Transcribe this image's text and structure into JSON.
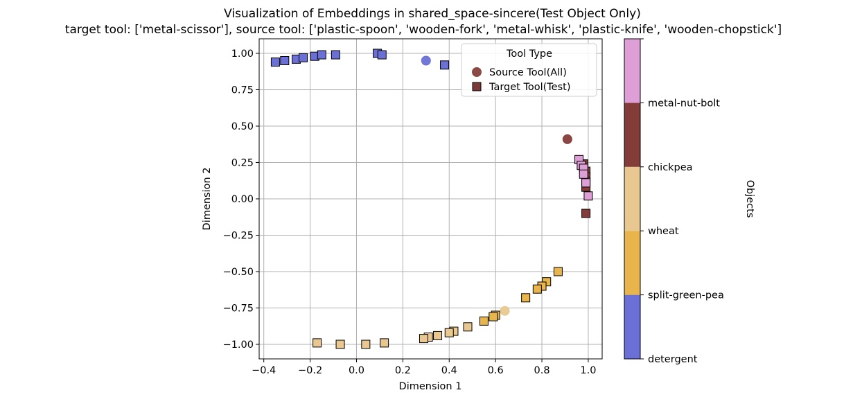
{
  "chart_data": {
    "type": "scatter",
    "title": "Visualization of Embeddings in shared_space-sincere(Test Object Only)",
    "subtitle": "target tool: ['metal-scissor'], source tool: ['plastic-spoon', 'wooden-fork', 'metal-whisk', 'plastic-knife', 'wooden-chopstick']",
    "xlabel": "Dimension 1",
    "ylabel": "Dimension 2",
    "xlim": [
      -0.42,
      1.06
    ],
    "ylim": [
      -1.1,
      1.1
    ],
    "xticks": [
      "−0.4",
      "−0.2",
      "0.0",
      "0.2",
      "0.4",
      "0.6",
      "0.8",
      "1.0"
    ],
    "xtick_values": [
      -0.4,
      -0.2,
      0.0,
      0.2,
      0.4,
      0.6,
      0.8,
      1.0
    ],
    "yticks": [
      "1.00",
      "0.75",
      "0.50",
      "0.25",
      "0.00",
      "−0.25",
      "−0.50",
      "−0.75",
      "−1.00"
    ],
    "ytick_values": [
      1.0,
      0.75,
      0.5,
      0.25,
      0.0,
      -0.25,
      -0.5,
      -0.75,
      -1.0
    ],
    "grid": true,
    "legend": {
      "title": "Tool Type",
      "placement": "top-right",
      "entries": [
        {
          "label": "Source Tool(All)",
          "marker": "circle",
          "color": "#8b4a44"
        },
        {
          "label": "Target Tool(Test)",
          "marker": "square",
          "color": "#7a3b38"
        }
      ]
    },
    "colorbar": {
      "label": "Objects",
      "categories": [
        "detergent",
        "split-green-pea",
        "wheat",
        "chickpea",
        "metal-nut-bolt"
      ],
      "tick_labels": [
        "detergent",
        "split-green-pea",
        "wheat",
        "chickpea",
        "metal-nut-bolt"
      ],
      "colors": [
        "#6b70d6",
        "#e8b44c",
        "#e8c890",
        "#843c39",
        "#de9ed6"
      ]
    },
    "series": [
      {
        "name": "Source Tool(All)",
        "marker": "circle",
        "points": [
          {
            "x": 0.3,
            "y": 0.95,
            "object": "detergent"
          },
          {
            "x": 0.64,
            "y": -0.77,
            "object": "wheat"
          },
          {
            "x": 0.91,
            "y": 0.41,
            "object": "chickpea"
          }
        ]
      },
      {
        "name": "Target Tool(Test)",
        "marker": "square",
        "points": [
          {
            "x": -0.35,
            "y": 0.94,
            "object": "detergent"
          },
          {
            "x": -0.31,
            "y": 0.95,
            "object": "detergent"
          },
          {
            "x": -0.26,
            "y": 0.96,
            "object": "detergent"
          },
          {
            "x": -0.23,
            "y": 0.97,
            "object": "detergent"
          },
          {
            "x": -0.18,
            "y": 0.98,
            "object": "detergent"
          },
          {
            "x": -0.15,
            "y": 0.99,
            "object": "detergent"
          },
          {
            "x": -0.09,
            "y": 0.99,
            "object": "detergent"
          },
          {
            "x": 0.09,
            "y": 1.0,
            "object": "detergent"
          },
          {
            "x": 0.11,
            "y": 0.99,
            "object": "detergent"
          },
          {
            "x": 0.38,
            "y": 0.92,
            "object": "detergent"
          },
          {
            "x": 0.87,
            "y": -0.5,
            "object": "split-green-pea"
          },
          {
            "x": 0.82,
            "y": -0.57,
            "object": "split-green-pea"
          },
          {
            "x": 0.8,
            "y": -0.6,
            "object": "split-green-pea"
          },
          {
            "x": 0.78,
            "y": -0.62,
            "object": "split-green-pea"
          },
          {
            "x": 0.73,
            "y": -0.68,
            "object": "split-green-pea"
          },
          {
            "x": 0.6,
            "y": -0.8,
            "object": "split-green-pea"
          },
          {
            "x": 0.59,
            "y": -0.81,
            "object": "split-green-pea"
          },
          {
            "x": 0.55,
            "y": -0.84,
            "object": "split-green-pea"
          },
          {
            "x": 0.48,
            "y": -0.88,
            "object": "wheat"
          },
          {
            "x": 0.42,
            "y": -0.91,
            "object": "wheat"
          },
          {
            "x": 0.4,
            "y": -0.92,
            "object": "wheat"
          },
          {
            "x": 0.35,
            "y": -0.94,
            "object": "wheat"
          },
          {
            "x": 0.31,
            "y": -0.95,
            "object": "wheat"
          },
          {
            "x": 0.29,
            "y": -0.96,
            "object": "wheat"
          },
          {
            "x": 0.12,
            "y": -0.99,
            "object": "wheat"
          },
          {
            "x": 0.04,
            "y": -1.0,
            "object": "wheat"
          },
          {
            "x": -0.07,
            "y": -1.0,
            "object": "wheat"
          },
          {
            "x": -0.17,
            "y": -0.99,
            "object": "wheat"
          },
          {
            "x": 0.98,
            "y": 0.24,
            "object": "chickpea"
          },
          {
            "x": 0.99,
            "y": 0.19,
            "object": "chickpea"
          },
          {
            "x": 0.99,
            "y": 0.15,
            "object": "chickpea"
          },
          {
            "x": 0.99,
            "y": 0.12,
            "object": "chickpea"
          },
          {
            "x": 0.99,
            "y": 0.08,
            "object": "chickpea"
          },
          {
            "x": 0.99,
            "y": -0.1,
            "object": "chickpea"
          },
          {
            "x": 0.96,
            "y": 0.27,
            "object": "metal-nut-bolt"
          },
          {
            "x": 0.97,
            "y": 0.23,
            "object": "metal-nut-bolt"
          },
          {
            "x": 0.98,
            "y": 0.21,
            "object": "metal-nut-bolt"
          },
          {
            "x": 0.98,
            "y": 0.17,
            "object": "metal-nut-bolt"
          },
          {
            "x": 0.99,
            "y": 0.11,
            "object": "metal-nut-bolt"
          },
          {
            "x": 1.0,
            "y": 0.02,
            "object": "metal-nut-bolt"
          }
        ]
      }
    ]
  }
}
